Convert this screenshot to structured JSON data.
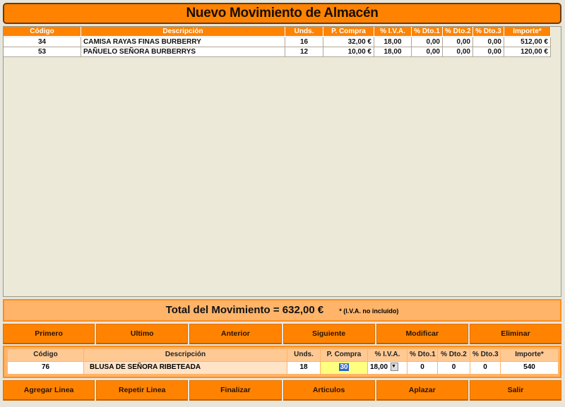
{
  "title": "Nuevo Movimiento de Almacén",
  "grid": {
    "headers": [
      "Código",
      "Descripción",
      "Unds.",
      "P. Compra",
      "% I.V.A.",
      "% Dto.1",
      "% Dto.2",
      "% Dto.3",
      "Importe*"
    ],
    "rows": [
      [
        "34",
        "CAMISA RAYAS FINAS BURBERRY",
        "16",
        "32,00 €",
        "18,00",
        "0,00",
        "0,00",
        "0,00",
        "512,00 €"
      ],
      [
        "53",
        "PAÑUELO SEÑORA BURBERRYS",
        "12",
        "10,00 €",
        "18,00",
        "0,00",
        "0,00",
        "0,00",
        "120,00 €"
      ]
    ]
  },
  "total": {
    "label": "Total del Movimiento  =  632,00 €",
    "note": "* (I.V.A. no incluido)"
  },
  "nav_buttons": [
    "Primero",
    "Ultimo",
    "Anterior",
    "Siguiente",
    "Modificar",
    "Eliminar"
  ],
  "entry": {
    "headers": [
      "Código",
      "Descripción",
      "Unds.",
      "P. Compra",
      "% I.V.A.",
      "% Dto.1",
      "% Dto.2",
      "% Dto.3",
      "Importe*"
    ],
    "codigo": "76",
    "descripcion": "BLUSA DE SEÑORA RIBETEADA",
    "unds": "18",
    "p_compra": "30",
    "iva": "18,00",
    "dto1": "0",
    "dto2": "0",
    "dto3": "0",
    "importe": "540"
  },
  "action_buttons": [
    "Agregar Linea",
    "Repetir Linea",
    "Finalizar",
    "Articulos",
    "Aplazar",
    "Salir"
  ],
  "colors": {
    "accent": "#ff8300",
    "panel": "#ffb469",
    "grid_bg": "#ece9d8"
  }
}
